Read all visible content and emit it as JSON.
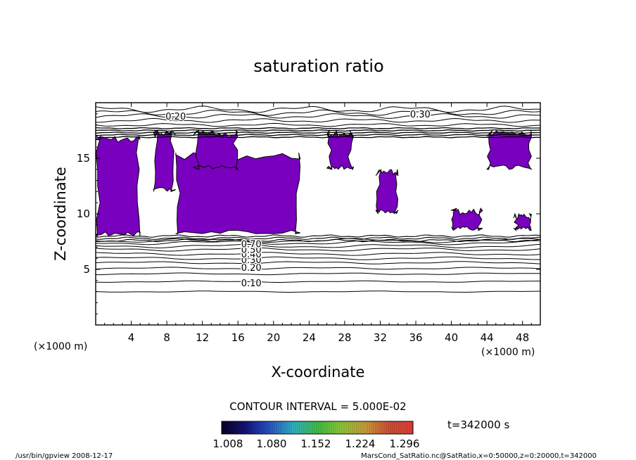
{
  "chart_data": {
    "type": "contour",
    "title": "saturation ratio",
    "xlabel": "X-coordinate",
    "ylabel": "Z-coordinate",
    "x_unit": "(×1000 m)",
    "y_unit": "(×1000 m)",
    "xlim": [
      0,
      50
    ],
    "ylim": [
      0,
      20
    ],
    "x_ticks": [
      4,
      8,
      12,
      16,
      20,
      24,
      28,
      32,
      36,
      40,
      44,
      48
    ],
    "y_ticks": [
      5,
      10,
      15
    ],
    "contour_interval_text": "CONTOUR INTERVAL = 5.000E-02",
    "contour_labels": [
      {
        "text": "0.20",
        "x": 9,
        "z": 18.8
      },
      {
        "text": "0.30",
        "x": 36.5,
        "z": 19.0
      },
      {
        "text": "0.10",
        "x": 17.5,
        "z": 3.8
      },
      {
        "text": "0.20",
        "x": 17.5,
        "z": 5.2
      },
      {
        "text": "0.30",
        "x": 17.5,
        "z": 5.9
      },
      {
        "text": "0.40",
        "x": 17.5,
        "z": 6.4
      },
      {
        "text": "0.50",
        "x": 17.5,
        "z": 6.8
      },
      {
        "text": "0.70",
        "x": 17.5,
        "z": 7.3
      }
    ],
    "upper_contour_levels_z": [
      3.0,
      3.9,
      4.6,
      5.1,
      5.6,
      6.0,
      6.4,
      6.8,
      7.1,
      7.4,
      7.6
    ],
    "top_contour_levels_z": [
      18.0,
      18.4,
      18.8,
      19.1,
      19.4
    ],
    "supersaturated_regions": [
      {
        "x": [
          0,
          5
        ],
        "z": [
          8,
          17
        ]
      },
      {
        "x": [
          6.5,
          9
        ],
        "z": [
          12,
          17.5
        ]
      },
      {
        "x": [
          9,
          23
        ],
        "z": [
          8.2,
          15.5
        ]
      },
      {
        "x": [
          11,
          16
        ],
        "z": [
          14,
          17.5
        ]
      },
      {
        "x": [
          26,
          29
        ],
        "z": [
          14,
          17.5
        ]
      },
      {
        "x": [
          31.5,
          34
        ],
        "z": [
          10,
          14
        ]
      },
      {
        "x": [
          40,
          43.5
        ],
        "z": [
          8.5,
          10.5
        ]
      },
      {
        "x": [
          44,
          49
        ],
        "z": [
          14,
          17.5
        ]
      },
      {
        "x": [
          47,
          49
        ],
        "z": [
          8.5,
          10
        ]
      }
    ],
    "colorbar": {
      "ticks": [
        "1.008",
        "1.080",
        "1.152",
        "1.224",
        "1.296"
      ],
      "colors": [
        "#0a0024",
        "#14147a",
        "#2a55c8",
        "#33b3c7",
        "#3ec04a",
        "#8fc83a",
        "#c8a03a",
        "#d0503a",
        "#e04038"
      ]
    },
    "time_label": "t=342000 s",
    "fill_color": "#7a00bf"
  },
  "footer": {
    "left": "/usr/bin/gpview   2008-12-17",
    "right": "MarsCond_SatRatio.nc@SatRatio,x=0:50000,z=0:20000,t=342000"
  }
}
